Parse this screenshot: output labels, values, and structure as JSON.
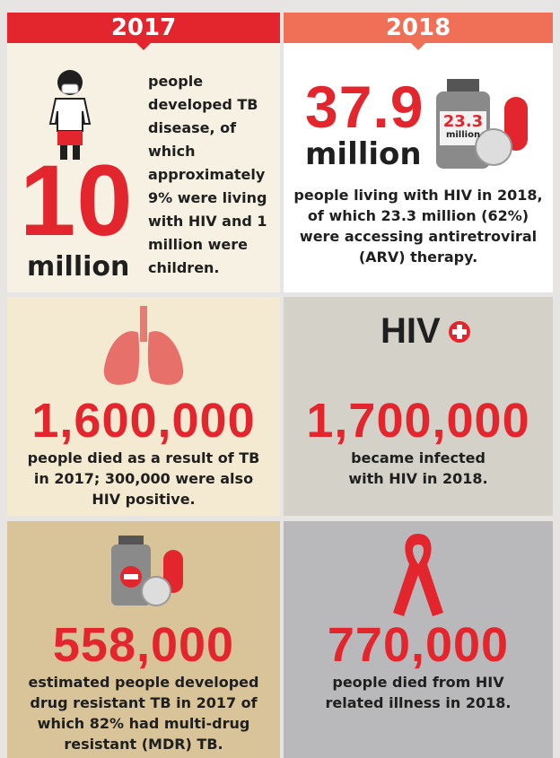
{
  "header": {
    "left": "2017",
    "right": "2018"
  },
  "panels": [
    {
      "number": "10",
      "unit": "million",
      "text": "people developed TB disease, of which approximately 9% were living with HIV and 1 million were children."
    },
    {
      "number": "37.9",
      "unit": "million",
      "badge": "23.3",
      "badge_unit": "million",
      "text": "people living with HIV in 2018, of which 23.3 million (62%) were accessing antiretroviral (ARV) therapy."
    },
    {
      "number": "1,600,000",
      "text": "people died as a result of TB in 2017; 300,000 were also HIV positive."
    },
    {
      "icon_label": "HIV",
      "number": "1,700,000",
      "text": "became infected with HIV in 2018."
    },
    {
      "number": "558,000",
      "text": "estimated people developed drug resistant TB in 2017 of which 82% had multi-drug resistant (MDR) TB."
    },
    {
      "number": "770,000",
      "text": "people died from HIV related illness in 2018."
    }
  ]
}
